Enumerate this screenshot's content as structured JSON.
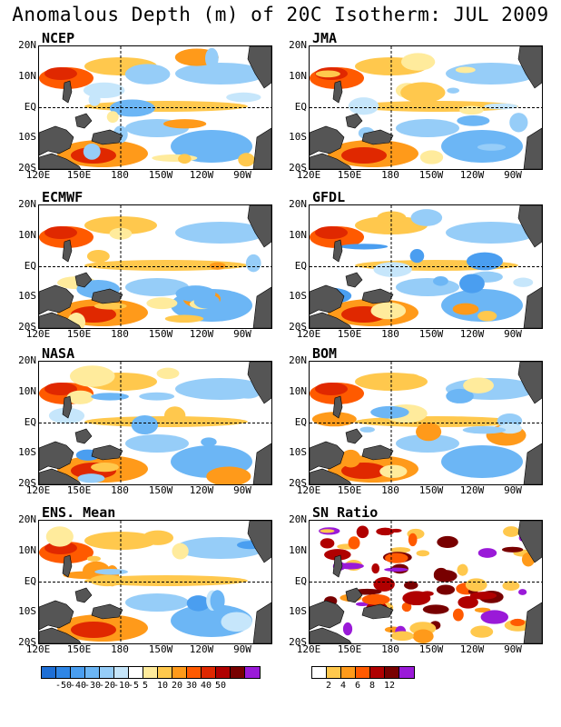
{
  "title": "Anomalous Depth (m) of 20C Isotherm: JUL 2009",
  "panels": [
    {
      "name": "NCEP"
    },
    {
      "name": "JMA"
    },
    {
      "name": "ECMWF"
    },
    {
      "name": "GFDL"
    },
    {
      "name": "NASA"
    },
    {
      "name": "BOM"
    },
    {
      "name": "ENS. Mean"
    },
    {
      "name": "SN Ratio"
    }
  ],
  "lat_labels": [
    "20N",
    "10N",
    "EQ",
    "10S",
    "20S"
  ],
  "lon_labels": [
    "120E",
    "150E",
    "180",
    "150W",
    "120W",
    "90W"
  ],
  "anomaly_colorbar": {
    "labels": [
      "-50",
      "-40",
      "-30",
      "-20",
      "-10",
      "-5",
      "5",
      "10",
      "20",
      "30",
      "40",
      "50"
    ],
    "colors": [
      "#1e6fd6",
      "#2f86e6",
      "#4a9ef0",
      "#6cb6f5",
      "#96cdf8",
      "#c6e6fb",
      "#ffffff",
      "#ffeb9c",
      "#ffc84d",
      "#ff9a1a",
      "#ff5a00",
      "#e02800",
      "#b00000",
      "#780000",
      "#9a1ad8"
    ]
  },
  "sn_colorbar": {
    "labels": [
      "2",
      "4",
      "6",
      "8",
      "12"
    ],
    "colors": [
      "#ffffff",
      "#ffc84d",
      "#ff9a1a",
      "#ff5a00",
      "#b00000",
      "#780000",
      "#9a1ad8"
    ]
  }
}
